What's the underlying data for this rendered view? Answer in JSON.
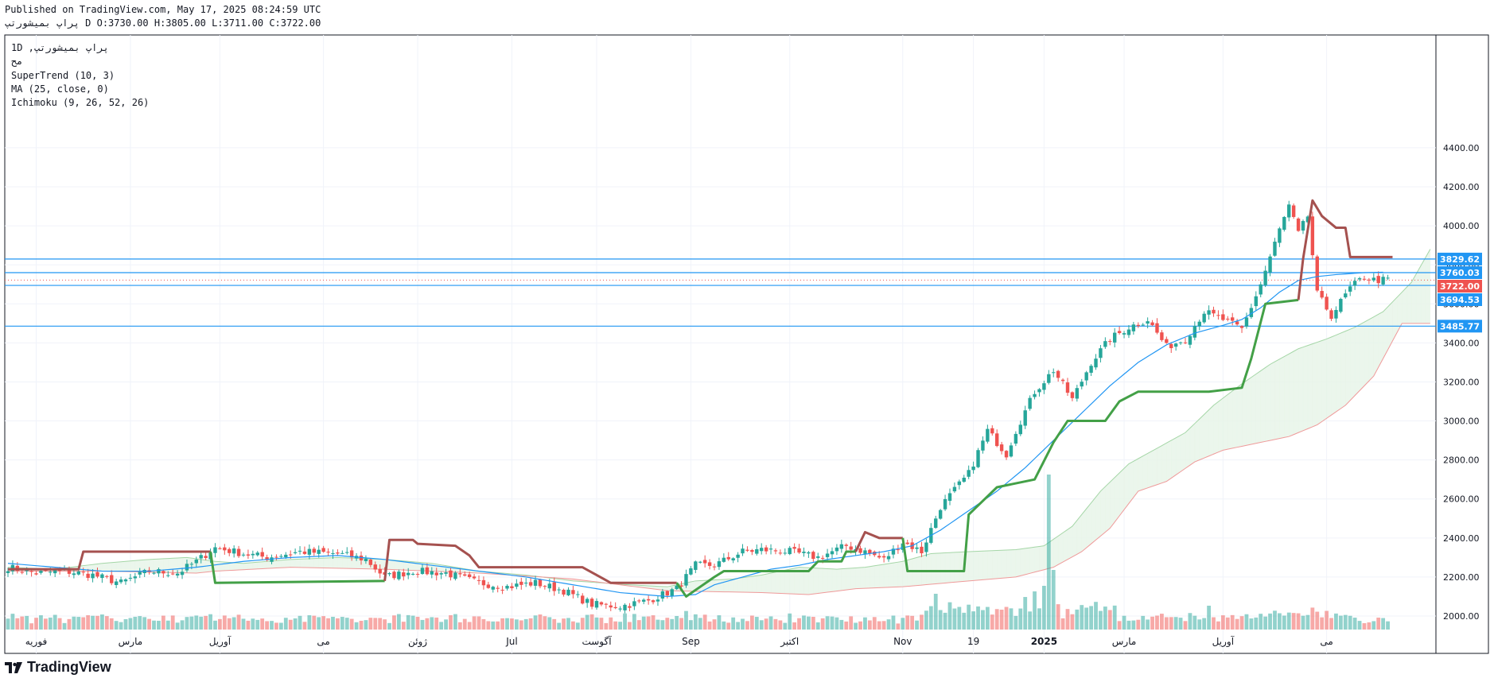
{
  "header": {
    "published": "Published on TradingView.com, May 17, 2025 08:24:59 UTC",
    "ohlc_line": "پراپ بمیشورتپ D O:3730.00 H:3805.00 L:3711.00 C:3722.00"
  },
  "legend": {
    "symbol_line": "1D ,پراپ بمیشورتپ",
    "exchange": "مح",
    "supertrend": "SuperTrend (10, 3)",
    "ma": "MA (25, close, 0)",
    "ichimoku": "Ichimoku (9, 26, 52, 26)"
  },
  "footer": {
    "brand": "TradingView"
  },
  "colors": {
    "up": "#26a69a",
    "down": "#ef5350",
    "st_up": "#43a047",
    "st_down": "#a5514f",
    "ma": "#2196f3",
    "hline": "#2196f3",
    "cloud_green": "#e8f5e9",
    "cloud_red": "#fde0dc",
    "senkou_a": "#a5d6a7",
    "senkou_b": "#ef9a9a"
  },
  "chart_data": {
    "type": "candlestick",
    "interval": "1D",
    "ylim": [
      1800,
      4420
    ],
    "y_ticks": [
      "4400.00",
      "4200.00",
      "4000.00",
      "3800.00",
      "3600.00",
      "3400.00",
      "3200.00",
      "3000.00",
      "2800.00",
      "2600.00",
      "2400.00",
      "2200.00",
      "2000.00"
    ],
    "x_labels": [
      {
        "label": "فوریه",
        "i": 6
      },
      {
        "label": "مارس",
        "i": 26
      },
      {
        "label": "آوریل",
        "i": 45
      },
      {
        "label": "می",
        "i": 67
      },
      {
        "label": "ژوئن",
        "i": 87
      },
      {
        "label": "Jul",
        "i": 107
      },
      {
        "label": "آگوست",
        "i": 125
      },
      {
        "label": "Sep",
        "i": 145
      },
      {
        "label": "اکتبر",
        "i": 166
      },
      {
        "label": "Nov",
        "i": 190
      },
      {
        "label": "19",
        "i": 205
      },
      {
        "label": "2025",
        "i": 220
      },
      {
        "label": "مارس",
        "i": 237
      },
      {
        "label": "آوریل",
        "i": 258
      },
      {
        "label": "می",
        "i": 280
      }
    ],
    "horizontal_lines": [
      {
        "value": 3829.62,
        "label": "3829.62",
        "style": "solid"
      },
      {
        "value": 3760.03,
        "label": "3760.03",
        "style": "solid"
      },
      {
        "value": 3694.53,
        "label": "3694.53",
        "style": "solid"
      },
      {
        "value": 3485.77,
        "label": "3485.77",
        "style": "solid"
      }
    ],
    "last_price": {
      "value": 3722.0,
      "label": "3722.00"
    },
    "ohlc_anchors": [
      [
        0,
        2250
      ],
      [
        6,
        2220
      ],
      [
        12,
        2230
      ],
      [
        18,
        2210
      ],
      [
        24,
        2170
      ],
      [
        30,
        2230
      ],
      [
        36,
        2220
      ],
      [
        40,
        2280
      ],
      [
        44,
        2350
      ],
      [
        50,
        2320
      ],
      [
        55,
        2300
      ],
      [
        62,
        2330
      ],
      [
        70,
        2320
      ],
      [
        76,
        2290
      ],
      [
        80,
        2200
      ],
      [
        86,
        2230
      ],
      [
        93,
        2220
      ],
      [
        100,
        2170
      ],
      [
        106,
        2150
      ],
      [
        112,
        2170
      ],
      [
        118,
        2130
      ],
      [
        124,
        2060
      ],
      [
        130,
        2050
      ],
      [
        136,
        2080
      ],
      [
        142,
        2140
      ],
      [
        146,
        2260
      ],
      [
        150,
        2260
      ],
      [
        156,
        2330
      ],
      [
        160,
        2340
      ],
      [
        166,
        2330
      ],
      [
        172,
        2300
      ],
      [
        178,
        2360
      ],
      [
        182,
        2330
      ],
      [
        186,
        2290
      ],
      [
        190,
        2380
      ],
      [
        194,
        2330
      ],
      [
        198,
        2560
      ],
      [
        204,
        2730
      ],
      [
        208,
        2950
      ],
      [
        212,
        2830
      ],
      [
        214,
        2950
      ],
      [
        218,
        3150
      ],
      [
        222,
        3260
      ],
      [
        226,
        3110
      ],
      [
        230,
        3300
      ],
      [
        234,
        3420
      ],
      [
        238,
        3480
      ],
      [
        242,
        3520
      ],
      [
        246,
        3380
      ],
      [
        250,
        3420
      ],
      [
        254,
        3560
      ],
      [
        258,
        3520
      ],
      [
        262,
        3470
      ],
      [
        266,
        3700
      ],
      [
        268,
        3840
      ],
      [
        270,
        3980
      ],
      [
        272,
        4100
      ],
      [
        274,
        3960
      ],
      [
        276,
        4050
      ],
      [
        278,
        3650
      ],
      [
        281,
        3540
      ],
      [
        285,
        3680
      ],
      [
        288,
        3740
      ],
      [
        290,
        3722
      ]
    ],
    "supertrend": [
      {
        "dir": "down",
        "points": [
          [
            0,
            2240
          ],
          [
            15,
            2240
          ],
          [
            16,
            2330
          ],
          [
            43,
            2330
          ]
        ]
      },
      {
        "dir": "up",
        "points": [
          [
            43,
            2330
          ],
          [
            44,
            2170
          ],
          [
            80,
            2180
          ]
        ]
      },
      {
        "dir": "down",
        "points": [
          [
            80,
            2180
          ],
          [
            81,
            2390
          ],
          [
            86,
            2390
          ],
          [
            87,
            2370
          ],
          [
            95,
            2360
          ],
          [
            98,
            2310
          ],
          [
            100,
            2250
          ],
          [
            122,
            2250
          ],
          [
            128,
            2170
          ],
          [
            142,
            2170
          ]
        ]
      },
      {
        "dir": "up",
        "points": [
          [
            142,
            2170
          ],
          [
            144,
            2100
          ],
          [
            150,
            2200
          ],
          [
            152,
            2230
          ],
          [
            158,
            2230
          ],
          [
            166,
            2230
          ],
          [
            170,
            2230
          ],
          [
            172,
            2280
          ],
          [
            177,
            2280
          ],
          [
            178,
            2330
          ],
          [
            180,
            2330
          ]
        ]
      },
      {
        "dir": "down",
        "points": [
          [
            180,
            2330
          ],
          [
            182,
            2430
          ],
          [
            185,
            2400
          ],
          [
            190,
            2400
          ]
        ]
      },
      {
        "dir": "up",
        "points": [
          [
            190,
            2400
          ],
          [
            191,
            2230
          ],
          [
            203,
            2230
          ],
          [
            204,
            2520
          ],
          [
            210,
            2660
          ],
          [
            218,
            2700
          ],
          [
            222,
            2890
          ],
          [
            225,
            3000
          ],
          [
            233,
            3000
          ],
          [
            236,
            3100
          ],
          [
            240,
            3150
          ],
          [
            255,
            3150
          ],
          [
            262,
            3170
          ],
          [
            264,
            3320
          ],
          [
            267,
            3600
          ],
          [
            274,
            3620
          ]
        ]
      },
      {
        "dir": "down",
        "points": [
          [
            274,
            3620
          ],
          [
            275,
            3830
          ],
          [
            277,
            4130
          ],
          [
            279,
            4050
          ],
          [
            282,
            3990
          ],
          [
            284,
            3990
          ],
          [
            285,
            3840
          ],
          [
            294,
            3840
          ]
        ]
      }
    ],
    "ma_anchors": [
      [
        0,
        2270
      ],
      [
        10,
        2250
      ],
      [
        20,
        2230
      ],
      [
        30,
        2230
      ],
      [
        40,
        2250
      ],
      [
        50,
        2280
      ],
      [
        60,
        2300
      ],
      [
        70,
        2310
      ],
      [
        80,
        2290
      ],
      [
        90,
        2260
      ],
      [
        100,
        2230
      ],
      [
        110,
        2200
      ],
      [
        120,
        2160
      ],
      [
        130,
        2120
      ],
      [
        140,
        2100
      ],
      [
        146,
        2110
      ],
      [
        150,
        2160
      ],
      [
        156,
        2200
      ],
      [
        162,
        2240
      ],
      [
        168,
        2260
      ],
      [
        174,
        2290
      ],
      [
        180,
        2310
      ],
      [
        186,
        2330
      ],
      [
        192,
        2360
      ],
      [
        198,
        2440
      ],
      [
        204,
        2540
      ],
      [
        210,
        2640
      ],
      [
        216,
        2760
      ],
      [
        222,
        2900
      ],
      [
        228,
        3040
      ],
      [
        234,
        3180
      ],
      [
        240,
        3300
      ],
      [
        246,
        3390
      ],
      [
        252,
        3450
      ],
      [
        258,
        3490
      ],
      [
        262,
        3520
      ],
      [
        266,
        3580
      ],
      [
        270,
        3660
      ],
      [
        274,
        3720
      ],
      [
        278,
        3740
      ],
      [
        282,
        3750
      ],
      [
        288,
        3760
      ],
      [
        292,
        3762
      ]
    ],
    "senkou_a_anchors": [
      [
        0,
        2250
      ],
      [
        10,
        2240
      ],
      [
        20,
        2270
      ],
      [
        30,
        2290
      ],
      [
        38,
        2300
      ],
      [
        44,
        2280
      ],
      [
        50,
        2270
      ],
      [
        60,
        2290
      ],
      [
        70,
        2300
      ],
      [
        80,
        2290
      ],
      [
        90,
        2270
      ],
      [
        100,
        2230
      ],
      [
        110,
        2210
      ],
      [
        120,
        2180
      ],
      [
        126,
        2170
      ],
      [
        132,
        2160
      ],
      [
        140,
        2150
      ],
      [
        146,
        2180
      ],
      [
        154,
        2190
      ],
      [
        160,
        2210
      ],
      [
        168,
        2250
      ],
      [
        176,
        2240
      ],
      [
        182,
        2250
      ],
      [
        190,
        2280
      ],
      [
        196,
        2320
      ],
      [
        204,
        2330
      ],
      [
        214,
        2340
      ],
      [
        220,
        2360
      ],
      [
        226,
        2460
      ],
      [
        232,
        2640
      ],
      [
        238,
        2780
      ],
      [
        244,
        2860
      ],
      [
        250,
        2940
      ],
      [
        256,
        3080
      ],
      [
        262,
        3190
      ],
      [
        268,
        3290
      ],
      [
        274,
        3370
      ],
      [
        280,
        3420
      ],
      [
        286,
        3480
      ],
      [
        292,
        3560
      ],
      [
        298,
        3710
      ],
      [
        302,
        3880
      ]
    ],
    "senkou_b_anchors": [
      [
        0,
        2230
      ],
      [
        20,
        2230
      ],
      [
        40,
        2220
      ],
      [
        44,
        2230
      ],
      [
        60,
        2250
      ],
      [
        80,
        2240
      ],
      [
        100,
        2220
      ],
      [
        120,
        2190
      ],
      [
        130,
        2160
      ],
      [
        140,
        2130
      ],
      [
        160,
        2120
      ],
      [
        170,
        2110
      ],
      [
        180,
        2140
      ],
      [
        190,
        2150
      ],
      [
        204,
        2180
      ],
      [
        214,
        2200
      ],
      [
        222,
        2250
      ],
      [
        228,
        2330
      ],
      [
        234,
        2450
      ],
      [
        240,
        2640
      ],
      [
        246,
        2690
      ],
      [
        252,
        2790
      ],
      [
        258,
        2850
      ],
      [
        264,
        2880
      ],
      [
        272,
        2920
      ],
      [
        278,
        2980
      ],
      [
        284,
        3080
      ],
      [
        290,
        3230
      ],
      [
        296,
        3500
      ],
      [
        302,
        3500
      ]
    ]
  }
}
